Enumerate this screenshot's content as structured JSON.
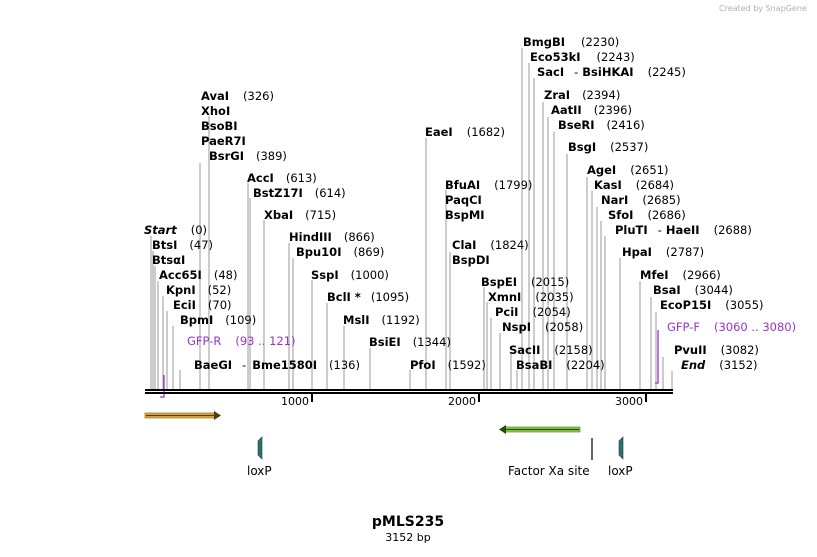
{
  "watermark": "Created by SnapGene",
  "plasmid": {
    "name": "pMLS235",
    "length_label": "3152 bp"
  },
  "axis": {
    "ticks": [
      "1000",
      "2000",
      "3000"
    ]
  },
  "features": [
    {
      "label": "loxP"
    },
    {
      "label": "Factor Xa site"
    },
    {
      "label": "loxP"
    }
  ],
  "sites": [
    {
      "name": "AvaI",
      "pos": "(326)"
    },
    {
      "name": "XhoI",
      "pos": ""
    },
    {
      "name": "BsoBI",
      "pos": ""
    },
    {
      "name": "PaeR7I",
      "pos": ""
    },
    {
      "name": "BsrGI",
      "pos": "(389)"
    },
    {
      "name": "AccI",
      "pos": "(613)"
    },
    {
      "name": "BstZ17I",
      "pos": "(614)"
    },
    {
      "name": "XbaI",
      "pos": "(715)"
    },
    {
      "name": "Start",
      "pos": "(0)"
    },
    {
      "name": "BtsI",
      "pos": "(47)"
    },
    {
      "name": "BtsαI",
      "pos": ""
    },
    {
      "name": "Acc65I",
      "pos": "(48)"
    },
    {
      "name": "KpnI",
      "pos": "(52)"
    },
    {
      "name": "EciI",
      "pos": "(70)"
    },
    {
      "name": "BpmI",
      "pos": "(109)"
    },
    {
      "name": "GFP-R",
      "pos": "(93 .. 121)"
    },
    {
      "name": "BaeGI",
      "pos": ""
    },
    {
      "name": "Bme1580I",
      "pos": "(136)"
    },
    {
      "name": "HindIII",
      "pos": "(866)"
    },
    {
      "name": "Bpu10I",
      "pos": "(869)"
    },
    {
      "name": "SspI",
      "pos": "(1000)"
    },
    {
      "name": "BclI *",
      "pos": "(1095)"
    },
    {
      "name": "MslI",
      "pos": "(1192)"
    },
    {
      "name": "BsiEI",
      "pos": "(1344)"
    },
    {
      "name": "PfoI",
      "pos": "(1592)"
    },
    {
      "name": "EaeI",
      "pos": "(1682)"
    },
    {
      "name": "BfuAI",
      "pos": "(1799)"
    },
    {
      "name": "PaqCI",
      "pos": ""
    },
    {
      "name": "BspMI",
      "pos": ""
    },
    {
      "name": "ClaI",
      "pos": "(1824)"
    },
    {
      "name": "BspDI",
      "pos": ""
    },
    {
      "name": "BmgBI",
      "pos": "(2230)"
    },
    {
      "name": "Eco53kI",
      "pos": "(2243)"
    },
    {
      "name": "SacI",
      "pos": ""
    },
    {
      "name": "BsiHKAI",
      "pos": "(2245)"
    },
    {
      "name": "ZraI",
      "pos": "(2394)"
    },
    {
      "name": "AatII",
      "pos": "(2396)"
    },
    {
      "name": "BseRI",
      "pos": "(2416)"
    },
    {
      "name": "BsgI",
      "pos": "(2537)"
    },
    {
      "name": "BspEI",
      "pos": "(2015)"
    },
    {
      "name": "XmnI",
      "pos": "(2035)"
    },
    {
      "name": "PciI",
      "pos": "(2054)"
    },
    {
      "name": "NspI",
      "pos": "(2058)"
    },
    {
      "name": "SacII",
      "pos": "(2158)"
    },
    {
      "name": "BsaBI",
      "pos": "(2204)"
    },
    {
      "name": "AgeI",
      "pos": "(2651)"
    },
    {
      "name": "KasI",
      "pos": "(2684)"
    },
    {
      "name": "NarI",
      "pos": "(2685)"
    },
    {
      "name": "SfoI",
      "pos": "(2686)"
    },
    {
      "name": "PluTI",
      "pos": ""
    },
    {
      "name": "HaeII",
      "pos": "(2688)"
    },
    {
      "name": "HpaI",
      "pos": "(2787)"
    },
    {
      "name": "MfeI",
      "pos": "(2966)"
    },
    {
      "name": "BsaI",
      "pos": "(3044)"
    },
    {
      "name": "EcoP15I",
      "pos": "(3055)"
    },
    {
      "name": "GFP-F",
      "pos": "(3060 .. 3080)"
    },
    {
      "name": "PvuII",
      "pos": "(3082)"
    },
    {
      "name": "End",
      "pos": "(3152)"
    }
  ],
  "colors": {
    "backbone": "#000000",
    "orange_feature": "#e8b04a",
    "green_feature": "#8fd14f",
    "primer": "#9933cc",
    "loxp": "#2f6f6f"
  }
}
